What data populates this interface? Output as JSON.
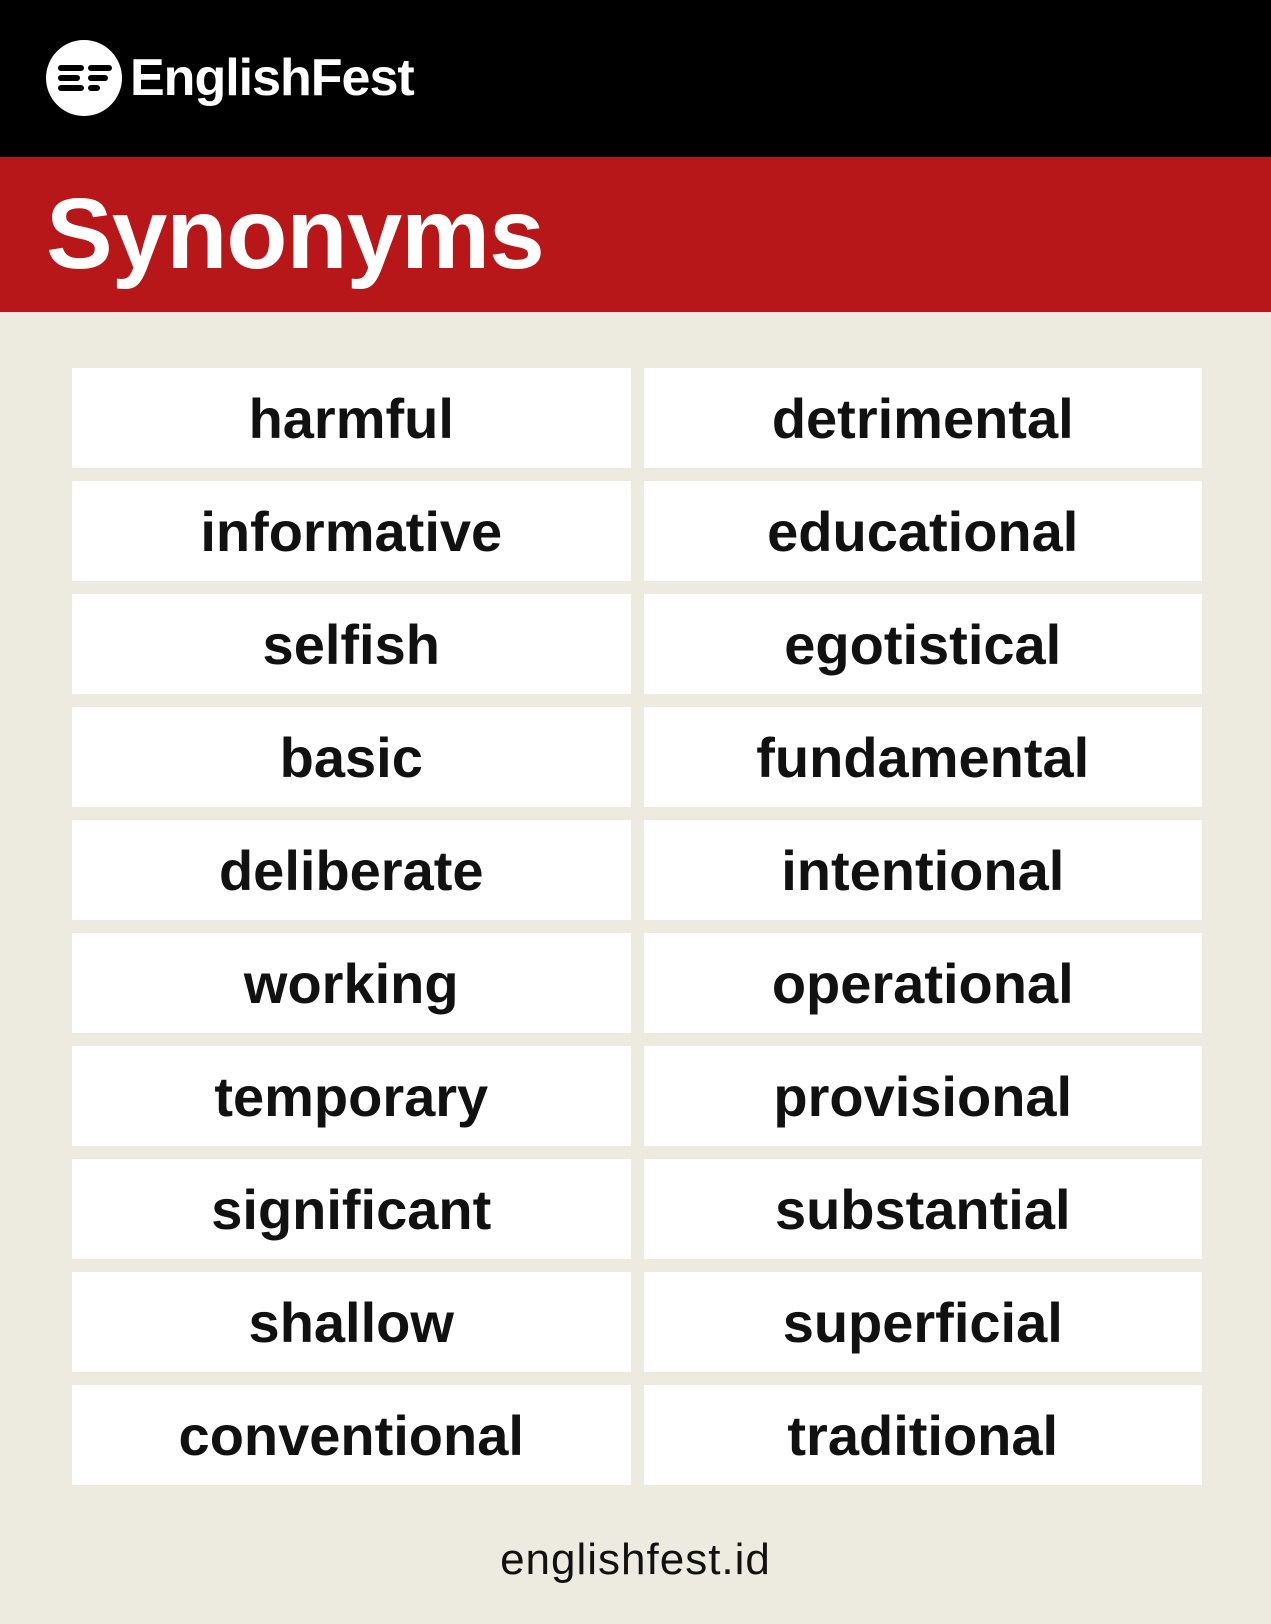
{
  "brand": {
    "name": "EnglishFest"
  },
  "title": "Synonyms",
  "pairs": [
    [
      "harmful",
      "detrimental"
    ],
    [
      "informative",
      "educational"
    ],
    [
      "selfish",
      "egotistical"
    ],
    [
      "basic",
      "fundamental"
    ],
    [
      "deliberate",
      "intentional"
    ],
    [
      "working",
      "operational"
    ],
    [
      "temporary",
      "provisional"
    ],
    [
      "significant",
      "substantial"
    ],
    [
      "shallow",
      "superficial"
    ],
    [
      "conventional",
      "traditional"
    ]
  ],
  "footer": "englishfest.id",
  "colors": {
    "header_bg": "#000000",
    "accent_red": "#b81719",
    "page_bg": "#edeae0",
    "cell_bg": "#ffffff",
    "text": "#111111"
  },
  "icons": {
    "logo": "englishfest-logo-icon"
  }
}
